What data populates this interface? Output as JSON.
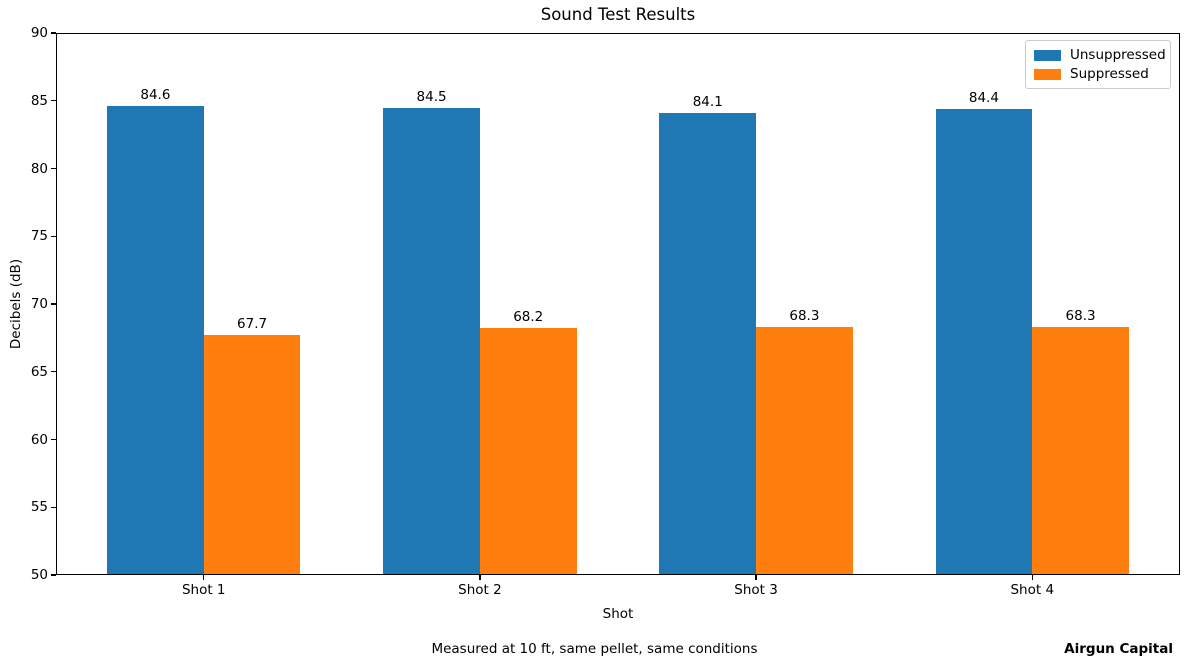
{
  "title": "Sound Test Results",
  "chart_data": {
    "type": "bar",
    "title": "Sound Test Results",
    "categories": [
      "Shot 1",
      "Shot 2",
      "Shot 3",
      "Shot 4"
    ],
    "series": [
      {
        "name": "Unsuppressed",
        "color": "#1f77b4",
        "values": [
          84.6,
          84.5,
          84.1,
          84.4
        ]
      },
      {
        "name": "Suppressed",
        "color": "#ff7f0e",
        "values": [
          67.7,
          68.2,
          68.3,
          68.3
        ]
      }
    ],
    "bar_value_labels": [
      [
        "84.6",
        "84.5",
        "84.1",
        "84.4"
      ],
      [
        "67.7",
        "68.2",
        "68.3",
        "68.3"
      ]
    ],
    "xlabel": "Shot",
    "ylabel": "Decibels (dB)",
    "ylim": [
      50,
      90
    ],
    "y_ticks": [
      50,
      55,
      60,
      65,
      70,
      75,
      80,
      85,
      90
    ],
    "grid": false,
    "legend_position": "upper right",
    "bar_width_fraction": 0.35,
    "value_labels_shown": true
  },
  "footer": {
    "note": "Measured at 10 ft, same pellet, same conditions",
    "brand": "Airgun Capital"
  }
}
